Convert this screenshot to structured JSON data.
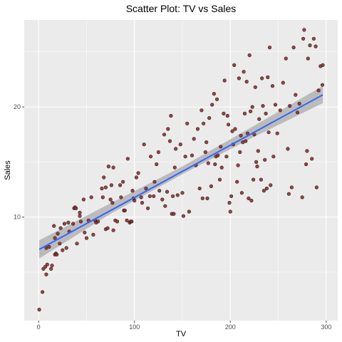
{
  "chart_data": {
    "type": "scatter",
    "title": "Scatter Plot: TV vs Sales",
    "xlabel": "TV",
    "ylabel": "Sales",
    "xlim": [
      -15,
      312
    ],
    "ylim": [
      0.6,
      27.9
    ],
    "x_ticks": [
      0,
      100,
      200,
      300
    ],
    "y_ticks": [
      10,
      20
    ],
    "grid": true,
    "legend": "none",
    "colors": {
      "panel": "#ebebeb",
      "grid_major": "#ffffff",
      "point_fill": "#7f2a2a",
      "point_stroke": "#3a1a1a",
      "fit_line": "#3366ff",
      "confidence_band": "#b3b3b3",
      "tick": "#4d4d4d"
    },
    "fit_line": {
      "x": [
        0.7,
        296.4
      ],
      "y": [
        7.07,
        21.1
      ]
    },
    "confidence_band": {
      "x": [
        0.7,
        75,
        150,
        225,
        296.4
      ],
      "lower": [
        6.25,
        10.3,
        13.9,
        17.3,
        20.35
      ],
      "upper": [
        7.9,
        11.25,
        14.6,
        18.3,
        21.9
      ]
    },
    "points": [
      [
        0.7,
        1.6
      ],
      [
        4,
        3.2
      ],
      [
        5,
        5.3
      ],
      [
        7,
        5.5
      ],
      [
        8,
        4.8
      ],
      [
        9,
        5.7
      ],
      [
        8,
        7.2
      ],
      [
        11,
        7.3
      ],
      [
        13,
        5.3
      ],
      [
        14,
        5.6
      ],
      [
        17,
        6.6
      ],
      [
        17,
        8.1
      ],
      [
        18,
        6.7
      ],
      [
        19,
        6.6
      ],
      [
        16,
        9.2
      ],
      [
        20,
        8.5
      ],
      [
        22,
        7.6
      ],
      [
        23,
        9.0
      ],
      [
        25,
        7.0
      ],
      [
        27,
        9.4
      ],
      [
        29,
        7.2
      ],
      [
        31,
        9.5
      ],
      [
        32,
        8.7
      ],
      [
        36,
        9.4
      ],
      [
        37,
        10.8
      ],
      [
        38,
        10.9
      ],
      [
        39,
        10.8
      ],
      [
        40,
        7.6
      ],
      [
        43,
        10.4
      ],
      [
        44,
        9.6
      ],
      [
        43,
        10.1
      ],
      [
        47,
        11.6
      ],
      [
        48,
        8.6
      ],
      [
        50,
        8.1
      ],
      [
        52,
        9.7
      ],
      [
        55,
        11.8
      ],
      [
        57,
        8.4
      ],
      [
        59,
        9.7
      ],
      [
        60,
        9.5
      ],
      [
        62,
        9.6
      ],
      [
        66,
        12.6
      ],
      [
        67,
        11.8
      ],
      [
        68,
        13.6
      ],
      [
        70,
        12.7
      ],
      [
        70,
        8.9
      ],
      [
        72,
        9.0
      ],
      [
        73,
        14.6
      ],
      [
        75,
        11.6
      ],
      [
        76,
        12.9
      ],
      [
        77,
        11.3
      ],
      [
        78,
        14.5
      ],
      [
        78,
        8.8
      ],
      [
        80,
        9.7
      ],
      [
        82,
        9.6
      ],
      [
        85,
        12.9
      ],
      [
        86,
        11.8
      ],
      [
        88,
        13.2
      ],
      [
        89,
        10.6
      ],
      [
        90,
        10.6
      ],
      [
        92,
        9.7
      ],
      [
        93,
        15.3
      ],
      [
        95,
        9.5
      ],
      [
        96,
        9.6
      ],
      [
        97,
        9.6
      ],
      [
        98,
        12.4
      ],
      [
        99,
        11.7
      ],
      [
        100,
        11.5
      ],
      [
        102,
        13.6
      ],
      [
        104,
        14.0
      ],
      [
        107,
        11.8
      ],
      [
        108,
        11.3
      ],
      [
        110,
        16.6
      ],
      [
        112,
        12.6
      ],
      [
        114,
        10.8
      ],
      [
        116,
        11.9
      ],
      [
        117,
        15.5
      ],
      [
        120,
        11.9
      ],
      [
        121,
        13.2
      ],
      [
        123,
        14.8
      ],
      [
        125,
        15.9
      ],
      [
        126,
        12.4
      ],
      [
        129,
        11.6
      ],
      [
        131,
        17.5
      ],
      [
        132,
        11.0
      ],
      [
        134,
        12.3
      ],
      [
        135,
        18.0
      ],
      [
        137,
        16.9
      ],
      [
        138,
        19.2
      ],
      [
        139,
        10.3
      ],
      [
        140,
        11.9
      ],
      [
        141,
        10.3
      ],
      [
        142,
        14.5
      ],
      [
        143,
        16.2
      ],
      [
        145,
        12.0
      ],
      [
        148,
        16.6
      ],
      [
        150,
        12.2
      ],
      [
        151,
        10.1
      ],
      [
        153,
        15.5
      ],
      [
        155,
        18.5
      ],
      [
        157,
        10.5
      ],
      [
        160,
        15.6
      ],
      [
        162,
        17.1
      ],
      [
        164,
        14.7
      ],
      [
        166,
        18.0
      ],
      [
        168,
        12.6
      ],
      [
        170,
        19.7
      ],
      [
        171,
        11.7
      ],
      [
        172,
        18.5
      ],
      [
        174,
        15.9
      ],
      [
        175,
        16.8
      ],
      [
        176,
        11.7
      ],
      [
        177,
        14.9
      ],
      [
        178,
        19.0
      ],
      [
        180,
        12.8
      ],
      [
        181,
        20.2
      ],
      [
        183,
        21.2
      ],
      [
        184,
        14.8
      ],
      [
        185,
        15.5
      ],
      [
        186,
        20.7
      ],
      [
        187,
        15.6
      ],
      [
        189,
        13.4
      ],
      [
        190,
        16.4
      ],
      [
        191,
        14.5
      ],
      [
        193,
        19.4
      ],
      [
        194,
        22.4
      ],
      [
        196,
        15.5
      ],
      [
        197,
        19.2
      ],
      [
        198,
        18.4
      ],
      [
        199,
        11.3
      ],
      [
        200,
        10.5
      ],
      [
        201,
        11.9
      ],
      [
        202,
        17.8
      ],
      [
        203,
        16.6
      ],
      [
        204,
        23.8
      ],
      [
        205,
        18.0
      ],
      [
        207,
        13.2
      ],
      [
        208,
        14.7
      ],
      [
        209,
        22.6
      ],
      [
        210,
        15.9
      ],
      [
        211,
        17.4
      ],
      [
        212,
        12.2
      ],
      [
        213,
        16.8
      ],
      [
        214,
        23.2
      ],
      [
        215,
        19.4
      ],
      [
        216,
        16.9
      ],
      [
        217,
        22.3
      ],
      [
        218,
        17.6
      ],
      [
        219,
        11.7
      ],
      [
        220,
        24.7
      ],
      [
        221,
        19.6
      ],
      [
        222,
        11.5
      ],
      [
        223,
        20.0
      ],
      [
        224,
        13.4
      ],
      [
        225,
        17.5
      ],
      [
        226,
        21.8
      ],
      [
        227,
        15.0
      ],
      [
        228,
        14.6
      ],
      [
        229,
        16.0
      ],
      [
        230,
        18.9
      ],
      [
        232,
        13.4
      ],
      [
        233,
        22.6
      ],
      [
        234,
        20.1
      ],
      [
        235,
        12.4
      ],
      [
        236,
        15.2
      ],
      [
        237,
        19.4
      ],
      [
        238,
        12.6
      ],
      [
        239,
        22.7
      ],
      [
        240,
        17.7
      ],
      [
        241,
        25.4
      ],
      [
        242,
        12.9
      ],
      [
        244,
        21.9
      ],
      [
        245,
        15.5
      ],
      [
        247,
        20.2
      ],
      [
        249,
        17.6
      ],
      [
        252,
        19.7
      ],
      [
        255,
        22.2
      ],
      [
        258,
        24.4
      ],
      [
        260,
        16.2
      ],
      [
        261,
        12.1
      ],
      [
        262,
        20.1
      ],
      [
        264,
        12.7
      ],
      [
        266,
        25.4
      ],
      [
        268,
        21.1
      ],
      [
        270,
        19.5
      ],
      [
        272,
        20.3
      ],
      [
        275,
        11.8
      ],
      [
        276,
        26.2
      ],
      [
        277,
        27.0
      ],
      [
        279,
        14.8
      ],
      [
        280,
        16.0
      ],
      [
        281,
        24.4
      ],
      [
        283,
        25.6
      ],
      [
        285,
        15.3
      ],
      [
        287,
        26.2
      ],
      [
        289,
        25.5
      ],
      [
        290,
        12.7
      ],
      [
        292,
        21.5
      ],
      [
        294,
        23.7
      ],
      [
        296,
        22.0
      ],
      [
        296.4,
        23.8
      ]
    ]
  }
}
